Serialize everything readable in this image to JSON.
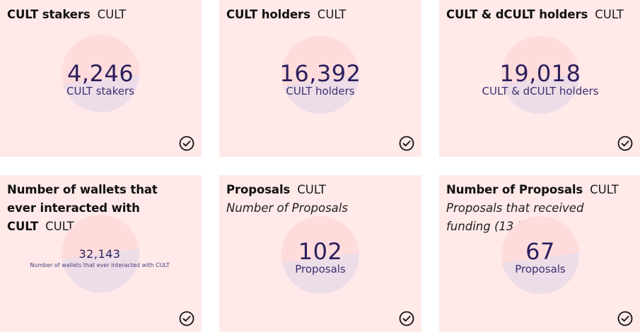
{
  "cards": [
    {
      "title": "CULT stakers",
      "tag": "CULT",
      "subtitle": "",
      "value": "4,246",
      "label": "CULT stakers",
      "icon": "check-circle-icon"
    },
    {
      "title": "CULT holders",
      "tag": "CULT",
      "subtitle": "",
      "value": "16,392",
      "label": "CULT holders",
      "icon": "check-circle-icon"
    },
    {
      "title": "CULT & dCULT holders",
      "tag": "CULT",
      "subtitle": "",
      "value": "19,018",
      "label": "CULT & dCULT holders",
      "icon": "check-circle-icon"
    },
    {
      "title": "Number of wallets that ever interacted with CULT",
      "tag": "CULT",
      "subtitle": "",
      "value": "32,143",
      "label": "Number of wallets that ever interacted with CULT",
      "icon": "check-circle-icon"
    },
    {
      "title": "Proposals",
      "tag": "CULT",
      "subtitle": "Number of Proposals",
      "value": "102",
      "label": "Proposals",
      "icon": "check-circle-icon"
    },
    {
      "title": "Number of Proposals",
      "tag": "CULT",
      "subtitle": "Proposals that received funding (13 ETH)",
      "value": "67",
      "label": "Proposals",
      "icon": "check-circle-icon"
    }
  ],
  "colors": {
    "card_background": "#ffe9e9",
    "circle_upper": "#ffdcdc",
    "circle_lower": "#ecdde8",
    "value_text": "#2b1f5c"
  }
}
